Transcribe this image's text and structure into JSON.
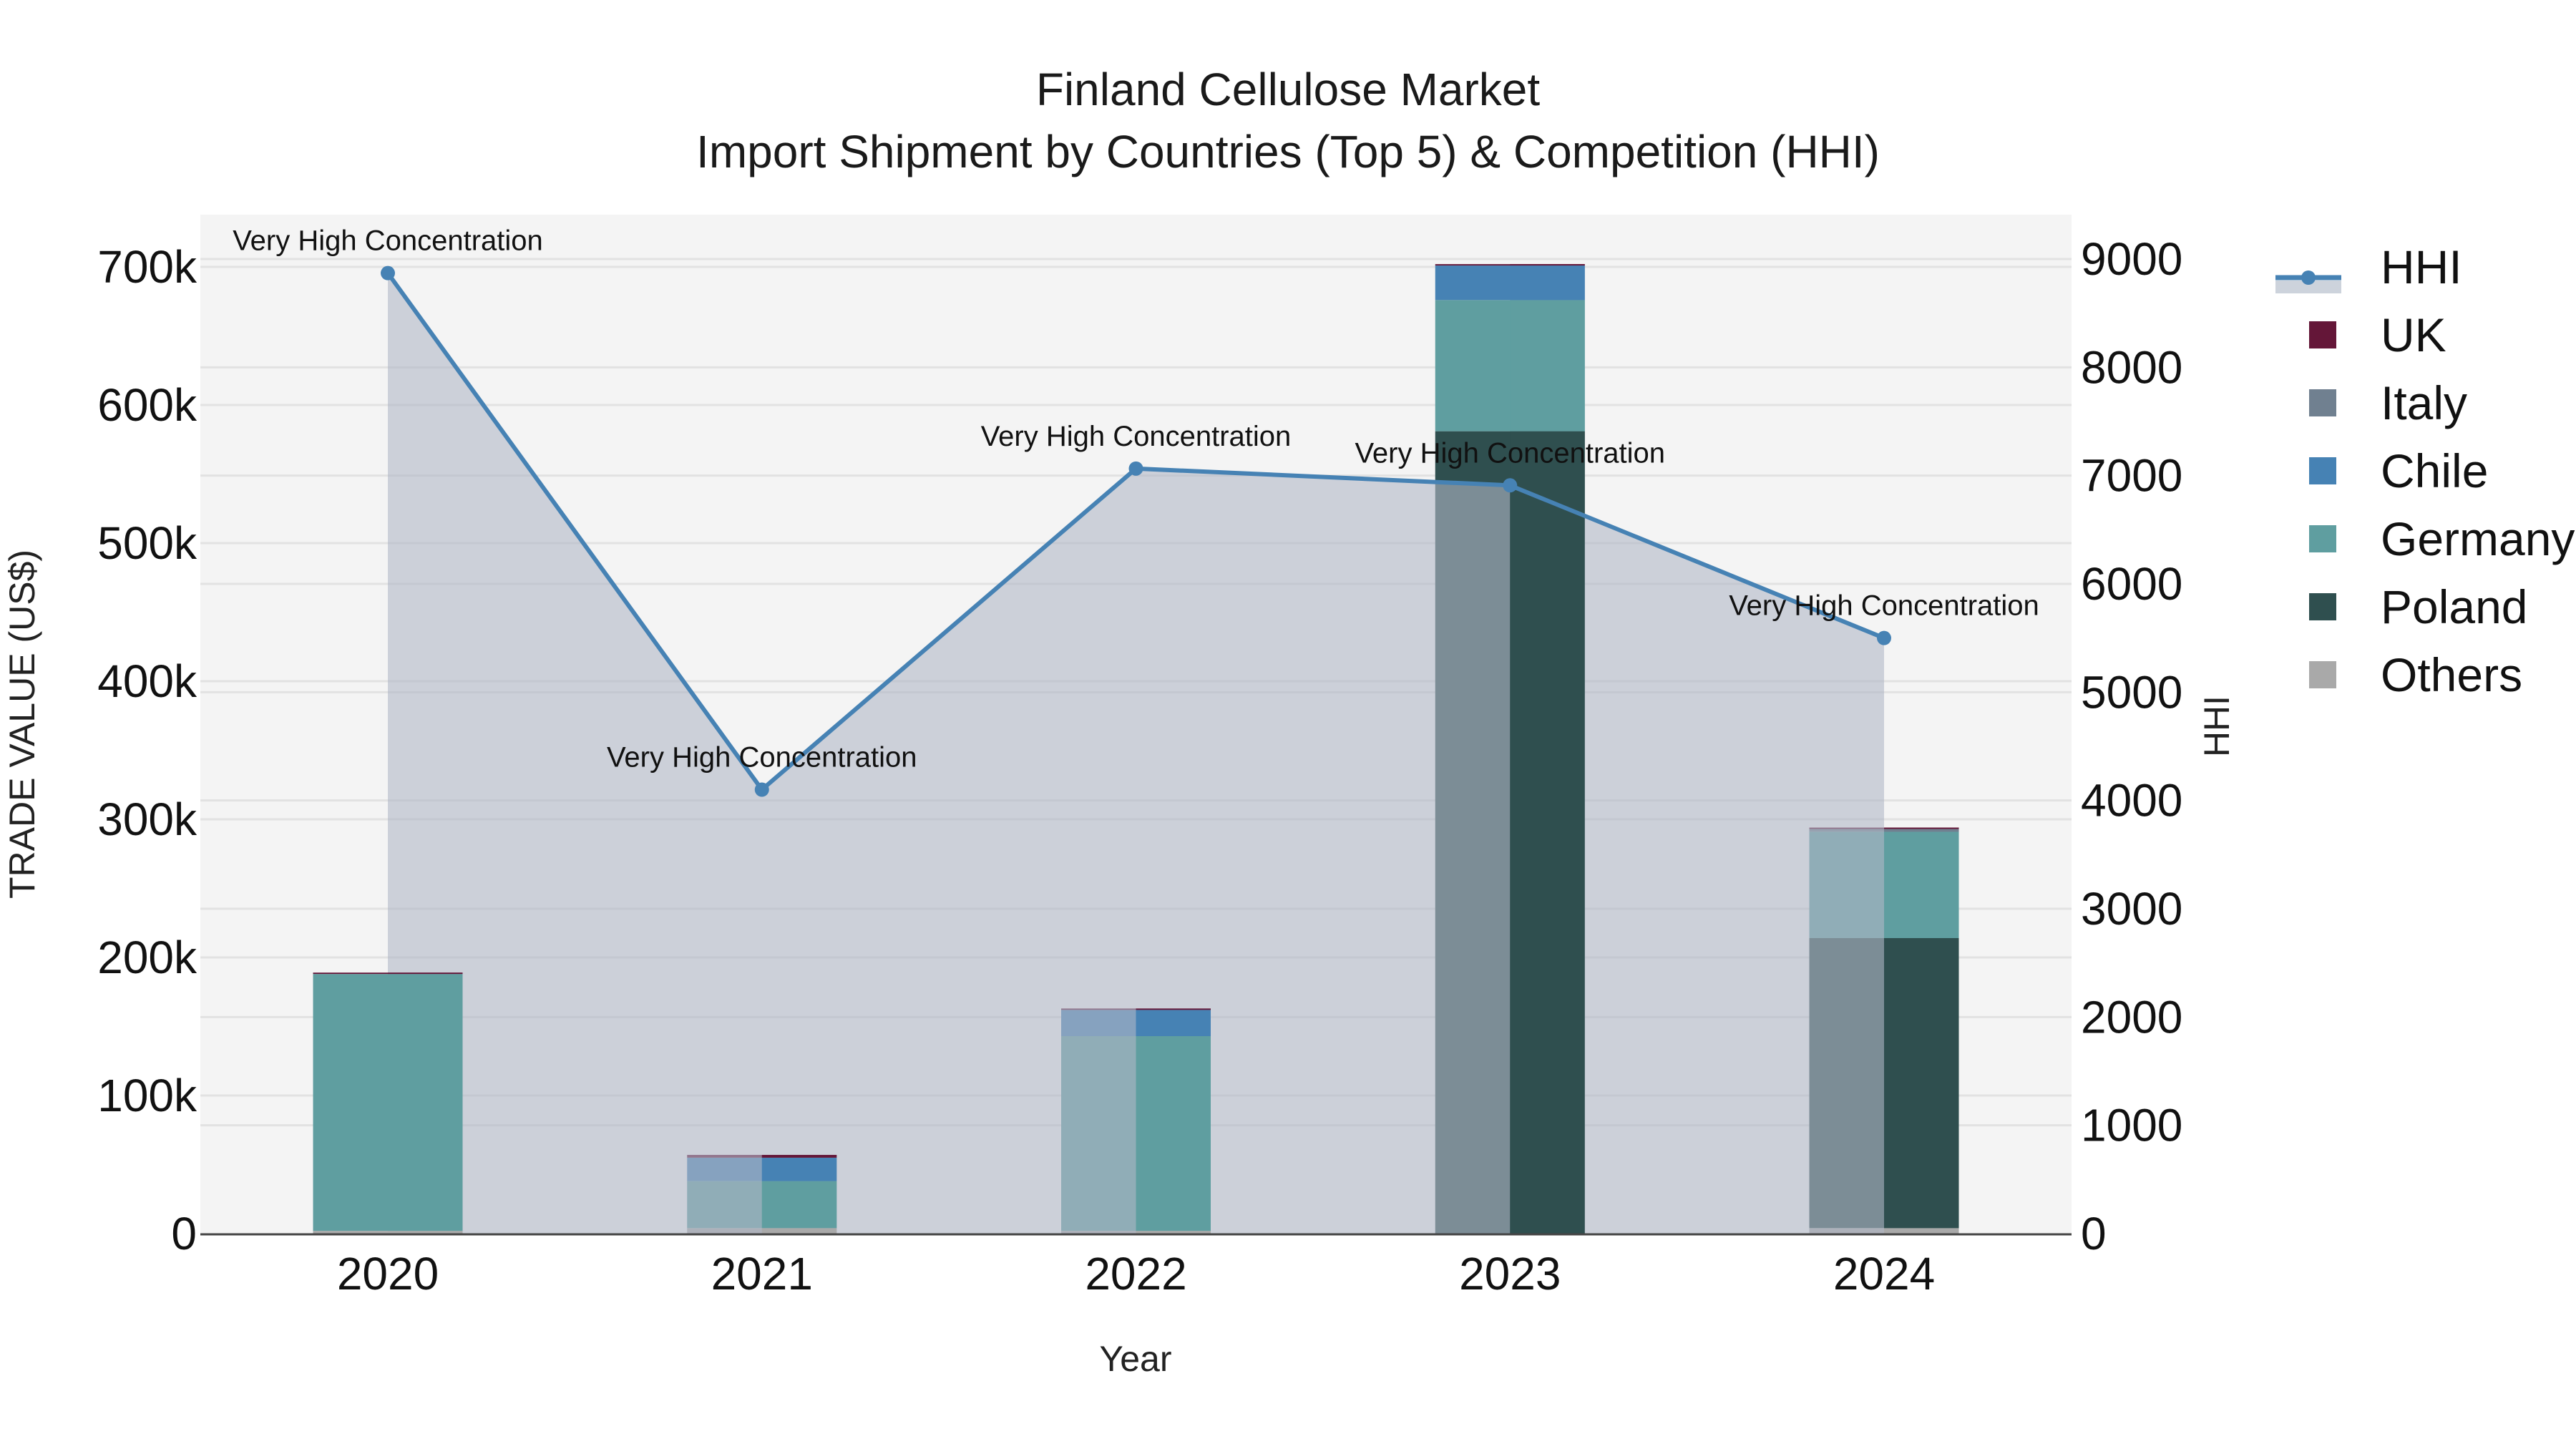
{
  "title": {
    "line1": "Finland Cellulose Market",
    "line2": "Import Shipment by Countries (Top 5) & Competition (HHI)"
  },
  "axes": {
    "x_title": "Year",
    "y_left_title": "TRADE VALUE (US$)",
    "y_right_title": "HHI",
    "y_left_ticks": [
      "0",
      "100k",
      "200k",
      "300k",
      "400k",
      "500k",
      "600k",
      "700k"
    ],
    "y_right_ticks": [
      "0",
      "1000",
      "2000",
      "3000",
      "4000",
      "5000",
      "6000",
      "7000",
      "8000",
      "9000"
    ],
    "x_ticks": [
      "2020",
      "2021",
      "2022",
      "2023",
      "2024"
    ]
  },
  "legend": {
    "items": [
      {
        "label": "HHI",
        "type": "line",
        "color": "#4682B4"
      },
      {
        "label": "UK",
        "type": "bar",
        "color": "#641638"
      },
      {
        "label": "Italy",
        "type": "bar",
        "color": "#708090"
      },
      {
        "label": "Chile",
        "type": "bar",
        "color": "#4682B4"
      },
      {
        "label": "Germany",
        "type": "bar",
        "color": "#5F9EA0"
      },
      {
        "label": "Poland",
        "type": "bar",
        "color": "#2F4F4F"
      },
      {
        "label": "Others",
        "type": "bar",
        "color": "#A9A9A9"
      }
    ]
  },
  "annotations": [
    {
      "year": "2020",
      "text": "Very High Concentration"
    },
    {
      "year": "2021",
      "text": "Very High Concentration"
    },
    {
      "year": "2022",
      "text": "Very High Concentration"
    },
    {
      "year": "2023",
      "text": "Very High Concentration"
    },
    {
      "year": "2024",
      "text": "Very High Concentration"
    }
  ],
  "colors": {
    "plot_bg": "#F4F4F4",
    "grid": "#E2E2E2",
    "hhi_line": "#4682B4",
    "hhi_fill": "rgba(176,184,198,0.6)"
  },
  "chart_data": {
    "type": "bar",
    "title": "Finland Cellulose Market — Import Shipment by Countries (Top 5) & Competition (HHI)",
    "xlabel": "Year",
    "ylabel": "TRADE VALUE (US$)",
    "y2label": "HHI",
    "categories": [
      "2020",
      "2021",
      "2022",
      "2023",
      "2024"
    ],
    "stacked": true,
    "ylim": [
      0,
      735000
    ],
    "y2lim": [
      0,
      9450
    ],
    "grid": true,
    "legend_position": "right",
    "series": [
      {
        "name": "Others",
        "color": "#A9A9A9",
        "values": [
          2000,
          4000,
          2000,
          0,
          4000
        ]
      },
      {
        "name": "Poland",
        "color": "#2F4F4F",
        "values": [
          0,
          0,
          0,
          581000,
          210000
        ]
      },
      {
        "name": "Germany",
        "color": "#5F9EA0",
        "values": [
          186000,
          34000,
          141000,
          95000,
          77000
        ]
      },
      {
        "name": "Chile",
        "color": "#4682B4",
        "values": [
          0,
          17000,
          19000,
          25000,
          0
        ]
      },
      {
        "name": "Italy",
        "color": "#708090",
        "values": [
          0,
          0,
          0,
          0,
          2000
        ]
      },
      {
        "name": "UK",
        "color": "#641638",
        "values": [
          1000,
          2000,
          1000,
          1000,
          1000
        ]
      }
    ],
    "line_series": {
      "name": "HHI",
      "axis": "right",
      "type": "line+area",
      "color": "#4682B4",
      "values": [
        8870,
        4100,
        7065,
        6910,
        5500
      ],
      "labels": [
        "Very High Concentration",
        "Very High Concentration",
        "Very High Concentration",
        "Very High Concentration",
        "Very High Concentration"
      ]
    }
  }
}
